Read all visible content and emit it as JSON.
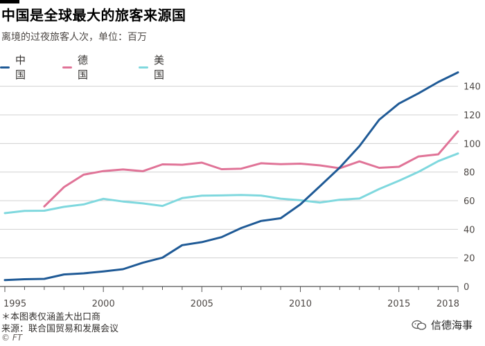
{
  "header": {
    "title": "中国是全球最大的旅客来源国",
    "subtitle": "离境的过夜旅客人次，单位：百万"
  },
  "footer": {
    "note": "＊本图表仅涵盖大出口商",
    "source": "来源：联合国贸易和发展会议",
    "credit": "© FT",
    "watermark": "信德海事"
  },
  "chart_data": {
    "type": "line",
    "title": "中国是全球最大的旅客来源国",
    "subtitle": "离境的过夜旅客人次，单位：百万",
    "xlabel": "",
    "ylabel": "",
    "xlim": [
      1995,
      2018
    ],
    "ylim": [
      0,
      150
    ],
    "x_ticks": [
      1995,
      2000,
      2005,
      2010,
      2015,
      2018
    ],
    "y_ticks": [
      0,
      20,
      40,
      60,
      80,
      100,
      120,
      140
    ],
    "grid": true,
    "y_axis_position": "right",
    "legend_position": "top-left",
    "series": [
      {
        "name": "中国",
        "color": "#1f5a96",
        "x": [
          1995,
          1996,
          1997,
          1998,
          1999,
          2000,
          2001,
          2002,
          2003,
          2004,
          2005,
          2006,
          2007,
          2008,
          2009,
          2010,
          2011,
          2012,
          2013,
          2014,
          2015,
          2016,
          2017,
          2018
        ],
        "values": [
          4.5,
          5.1,
          5.3,
          8.4,
          9.2,
          10.5,
          12.1,
          16.6,
          20.2,
          28.9,
          31.0,
          34.5,
          40.9,
          45.8,
          47.7,
          57.4,
          70.2,
          83.2,
          98.2,
          116.6,
          127.9,
          135.1,
          143.0,
          149.7
        ]
      },
      {
        "name": "德国",
        "color": "#e07397",
        "x": [
          1997,
          1998,
          1999,
          2000,
          2001,
          2002,
          2003,
          2004,
          2005,
          2006,
          2007,
          2008,
          2009,
          2010,
          2011,
          2012,
          2013,
          2014,
          2015,
          2016,
          2017,
          2018
        ],
        "values": [
          56.0,
          69.5,
          78.2,
          80.7,
          81.8,
          80.6,
          85.4,
          85.1,
          86.6,
          82.0,
          82.4,
          86.2,
          85.5,
          85.9,
          84.7,
          82.7,
          87.5,
          83.0,
          83.7,
          90.9,
          92.4,
          108.5
        ]
      },
      {
        "name": "美国",
        "color": "#7fd8de",
        "x": [
          1995,
          1996,
          1997,
          1998,
          1999,
          2000,
          2001,
          2002,
          2003,
          2004,
          2005,
          2006,
          2007,
          2008,
          2009,
          2010,
          2011,
          2012,
          2013,
          2014,
          2015,
          2016,
          2017,
          2018
        ],
        "values": [
          51.3,
          52.9,
          53.0,
          55.7,
          57.4,
          61.3,
          59.4,
          58.1,
          56.3,
          61.8,
          63.5,
          63.7,
          64.0,
          63.6,
          61.4,
          60.3,
          58.7,
          60.7,
          61.5,
          68.2,
          73.9,
          80.2,
          87.7,
          93.0
        ]
      }
    ]
  }
}
